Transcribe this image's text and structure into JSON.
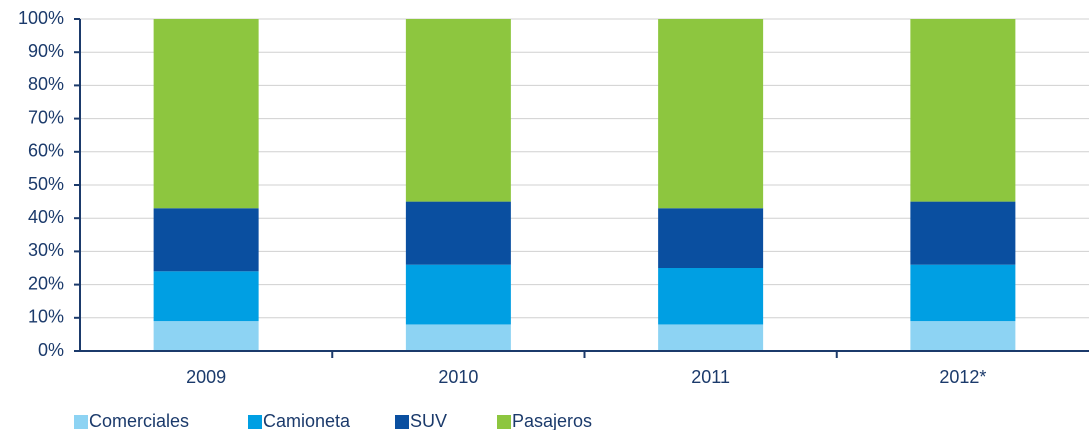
{
  "chart_data": {
    "type": "stacked_bar",
    "categories": [
      "2009",
      "2010",
      "2011",
      "2012*"
    ],
    "series": [
      {
        "name": "Comerciales",
        "color": "#8dd3f3",
        "values": [
          9,
          8,
          8,
          9
        ]
      },
      {
        "name": "Camioneta",
        "color": "#009fe3",
        "values": [
          15,
          18,
          17,
          17
        ]
      },
      {
        "name": "SUV",
        "color": "#0a4fa0",
        "values": [
          19,
          19,
          18,
          19
        ]
      },
      {
        "name": "Pasajeros",
        "color": "#8dc63f",
        "values": [
          57,
          55,
          57,
          55
        ]
      }
    ],
    "ylim": [
      0,
      100
    ],
    "yticks": [
      {
        "value": 0,
        "label": "0%"
      },
      {
        "value": 10,
        "label": "10%"
      },
      {
        "value": 20,
        "label": "20%"
      },
      {
        "value": 30,
        "label": "30%"
      },
      {
        "value": 40,
        "label": "40%"
      },
      {
        "value": 50,
        "label": "50%"
      },
      {
        "value": 60,
        "label": "60%"
      },
      {
        "value": 70,
        "label": "70%"
      },
      {
        "value": 80,
        "label": "80%"
      },
      {
        "value": 90,
        "label": "90%"
      },
      {
        "value": 100,
        "label": "100%"
      }
    ],
    "grid": true,
    "legend": "bottom-left"
  }
}
